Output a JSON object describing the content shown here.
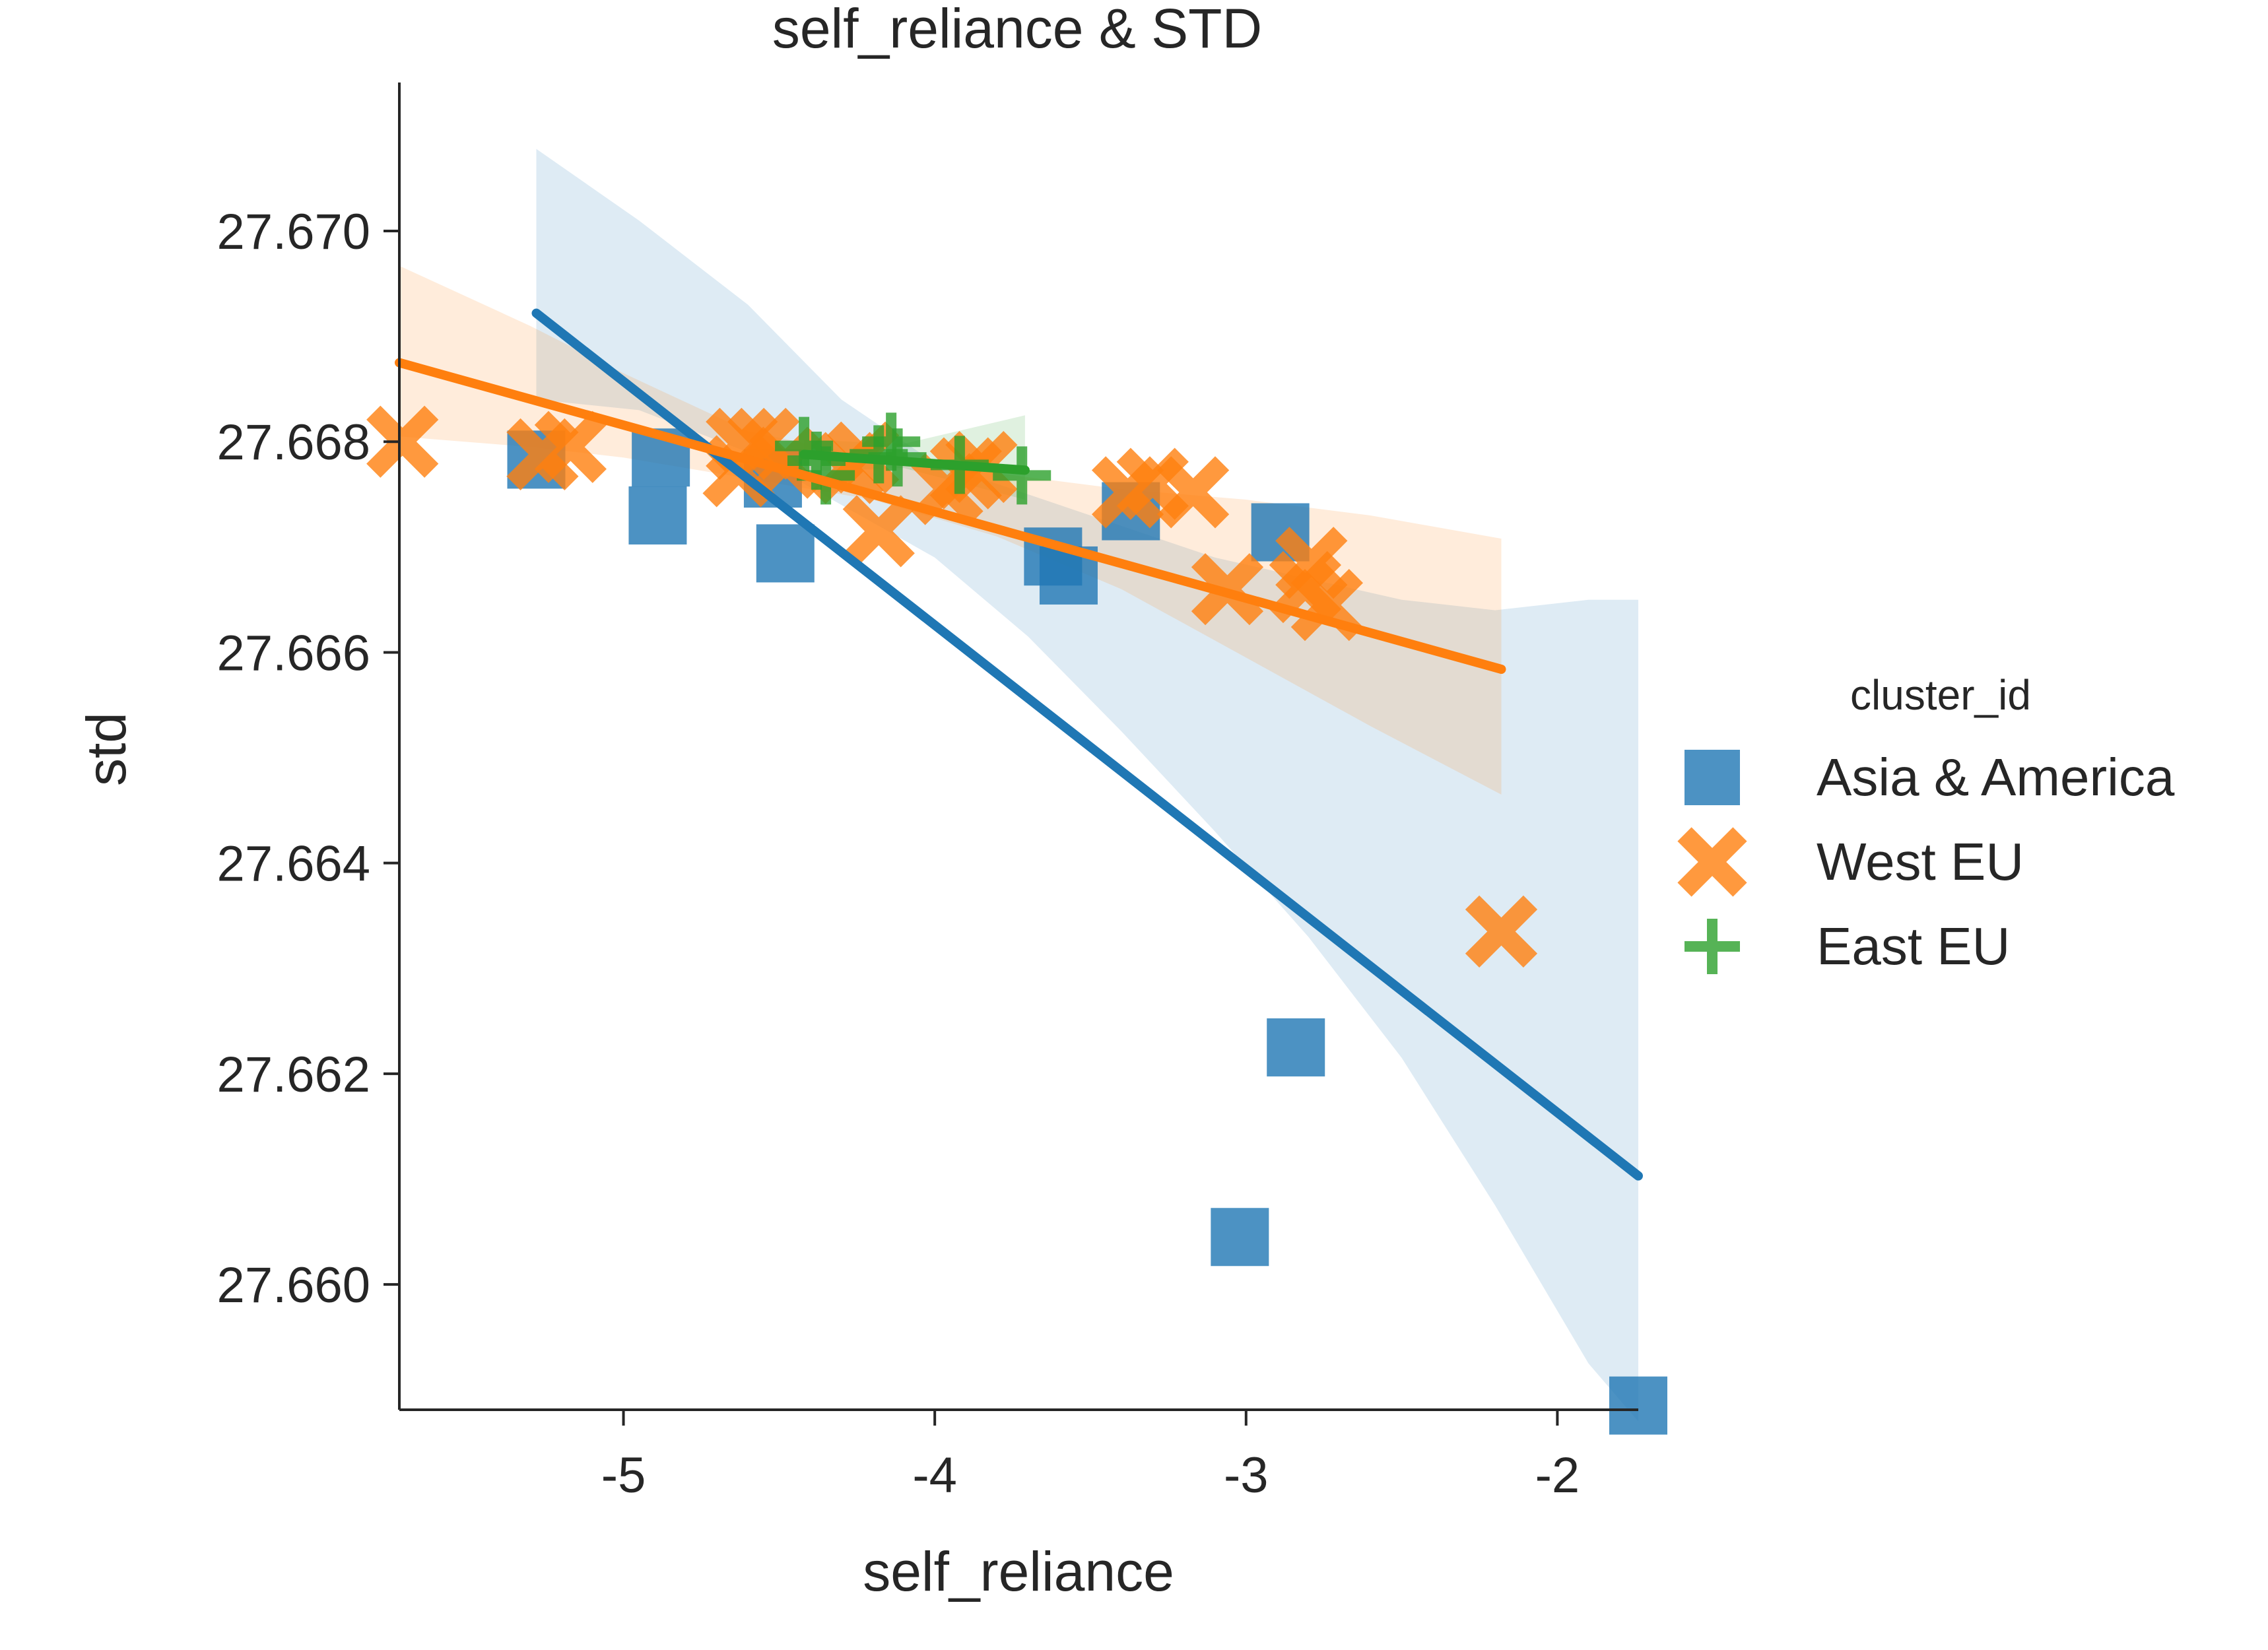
{
  "chart_data": {
    "type": "scatter",
    "title": "self_reliance & STD",
    "xlabel": "self_reliance",
    "ylabel": "std",
    "xlim": [
      -5.72,
      -1.74
    ],
    "ylim": [
      27.65881,
      27.67141
    ],
    "xticks": [
      {
        "value": -5,
        "label": "-5"
      },
      {
        "value": -4,
        "label": "-4"
      },
      {
        "value": -3,
        "label": "-3"
      },
      {
        "value": -2,
        "label": "-2"
      }
    ],
    "yticks": [
      {
        "value": 27.66,
        "label": "27.660"
      },
      {
        "value": 27.662,
        "label": "27.662"
      },
      {
        "value": 27.664,
        "label": "27.664"
      },
      {
        "value": 27.666,
        "label": "27.666"
      },
      {
        "value": 27.668,
        "label": "27.668"
      },
      {
        "value": 27.67,
        "label": "27.670"
      }
    ],
    "grid": false,
    "legend": {
      "title": "cluster_id",
      "placement": "center-right"
    },
    "series": [
      {
        "name": "Asia & America",
        "color": "#1f77b4",
        "marker": "square",
        "points": [
          [
            -5.28,
            27.66783
          ],
          [
            -4.88,
            27.66785
          ],
          [
            -4.89,
            27.6673
          ],
          [
            -4.52,
            27.66765
          ],
          [
            -4.48,
            27.66694
          ],
          [
            -3.62,
            27.66691
          ],
          [
            -3.57,
            27.66673
          ],
          [
            -3.37,
            27.66734
          ],
          [
            -2.89,
            27.66714
          ],
          [
            -2.84,
            27.66225
          ],
          [
            -3.02,
            27.66045
          ],
          [
            -1.74,
            27.65885
          ]
        ],
        "fit": {
          "x": [
            -5.28,
            -1.74
          ],
          "y": [
            27.66922,
            27.66103
          ]
        },
        "ci": {
          "x": [
            -5.28,
            -4.95,
            -4.6,
            -4.3,
            -4.0,
            -3.7,
            -3.4,
            -3.1,
            -2.8,
            -2.5,
            -2.2,
            -1.9,
            -1.74
          ],
          "upper": [
            27.67078,
            27.6701,
            27.6693,
            27.6684,
            27.6678,
            27.6675,
            27.6672,
            27.6669,
            27.6667,
            27.6665,
            27.6664,
            27.6665,
            27.6665
          ],
          "lower": [
            27.6684,
            27.6683,
            27.6679,
            27.6674,
            27.6669,
            27.66615,
            27.66525,
            27.6643,
            27.6633,
            27.66215,
            27.66075,
            27.65925,
            27.6587
          ]
        }
      },
      {
        "name": "West EU",
        "color": "#ff7f0e",
        "marker": "x",
        "points": [
          [
            -5.71,
            27.668
          ],
          [
            -5.26,
            27.66788
          ],
          [
            -5.17,
            27.66795
          ],
          [
            -4.62,
            27.66798
          ],
          [
            -4.63,
            27.66772
          ],
          [
            -4.55,
            27.66798
          ],
          [
            -4.48,
            27.6678
          ],
          [
            -4.28,
            27.66775
          ],
          [
            -4.23,
            27.66785
          ],
          [
            -4.18,
            27.66715
          ],
          [
            -3.96,
            27.66755
          ],
          [
            -3.9,
            27.6677
          ],
          [
            -3.85,
            27.66776
          ],
          [
            -3.38,
            27.66752
          ],
          [
            -3.3,
            27.6676
          ],
          [
            -3.17,
            27.66752
          ],
          [
            -3.06,
            27.6666
          ],
          [
            -2.81,
            27.66662
          ],
          [
            -2.79,
            27.66685
          ],
          [
            -2.74,
            27.66645
          ],
          [
            -2.18,
            27.66335
          ]
        ],
        "fit": {
          "x": [
            -5.72,
            -2.18
          ],
          "y": [
            27.66875,
            27.66584
          ]
        },
        "ci": {
          "x": [
            -5.72,
            -5.3,
            -5.0,
            -4.6,
            -4.2,
            -3.8,
            -3.4,
            -3.0,
            -2.6,
            -2.18
          ],
          "upper": [
            27.66967,
            27.6691,
            27.66865,
            27.6681,
            27.66785,
            27.6677,
            27.66755,
            27.66745,
            27.6673,
            27.66708
          ],
          "lower": [
            27.66805,
            27.66795,
            27.66785,
            27.66765,
            27.66745,
            27.6671,
            27.6666,
            27.66595,
            27.6653,
            27.66465
          ]
        }
      },
      {
        "name": "East EU",
        "color": "#2ca02c",
        "marker": "plus",
        "points": [
          [
            -4.42,
            27.66796
          ],
          [
            -4.38,
            27.66782
          ],
          [
            -4.35,
            27.66768
          ],
          [
            -4.18,
            27.66788
          ],
          [
            -4.14,
            27.668
          ],
          [
            -4.12,
            27.66785
          ],
          [
            -3.92,
            27.66778
          ],
          [
            -3.72,
            27.66768
          ]
        ],
        "fit": {
          "x": [
            -4.42,
            -3.71
          ],
          "y": [
            27.66788,
            27.66773
          ]
        },
        "ci": {
          "x": [
            -4.42,
            -4.1,
            -3.71
          ],
          "upper": [
            27.66802,
            27.66798,
            27.66825
          ],
          "lower": [
            27.66772,
            27.66775,
            27.66745
          ]
        }
      }
    ]
  }
}
